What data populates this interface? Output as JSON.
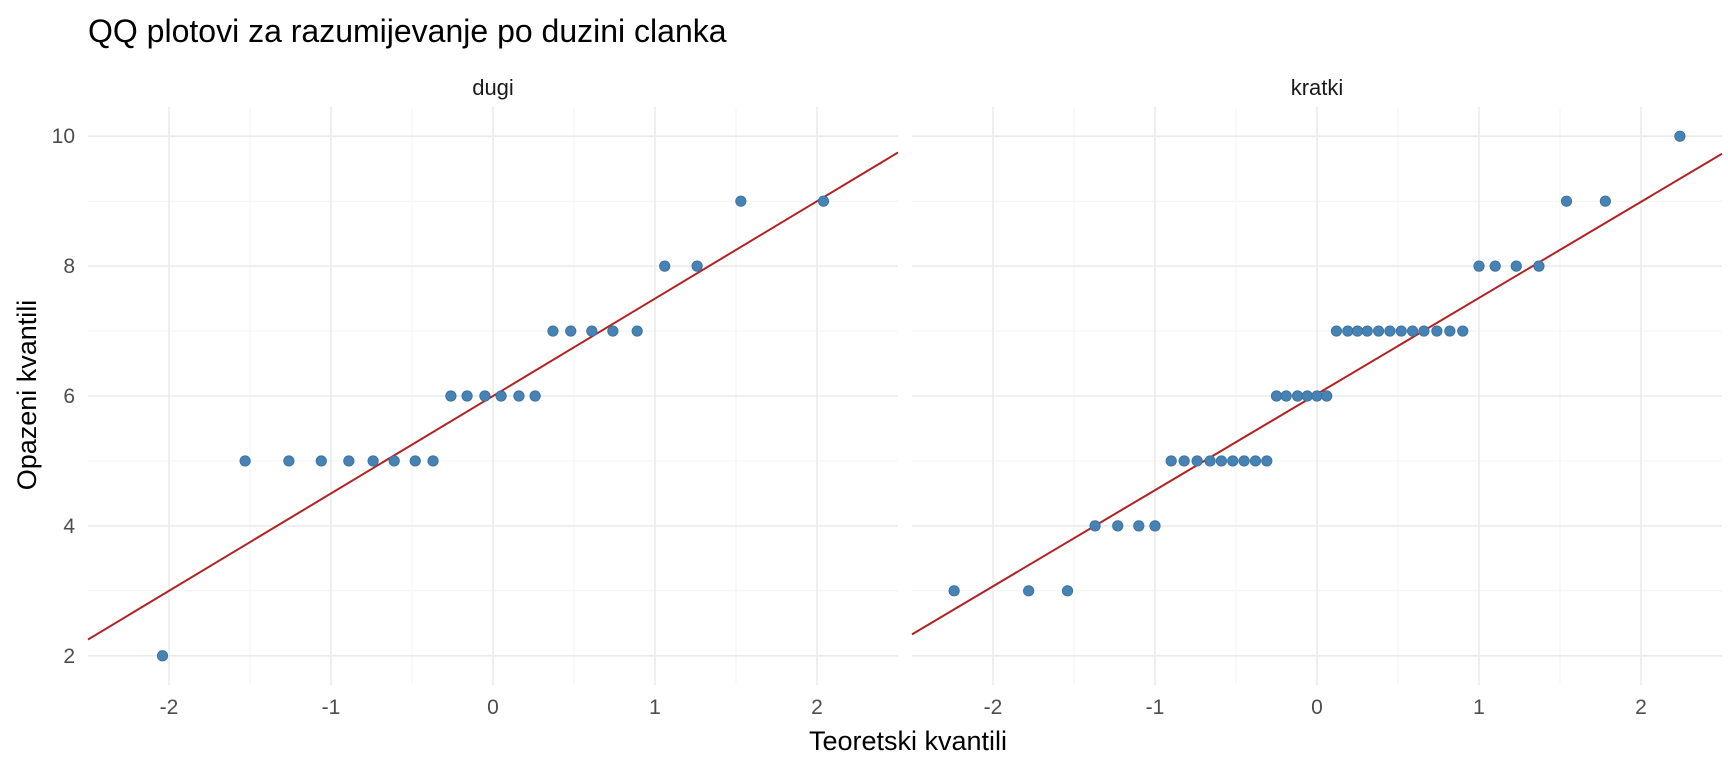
{
  "chart_data": {
    "type": "scatter",
    "title": "QQ plotovi za razumijevanje po duzini clanka",
    "xlabel": "Teoretski kvantili",
    "ylabel": "Opazeni kvantili",
    "xlim": [
      -2.5,
      2.5
    ],
    "ylim": [
      1.55,
      10.45
    ],
    "x_ticks": [
      -2,
      -1,
      0,
      1,
      2
    ],
    "y_ticks": [
      2,
      4,
      6,
      8,
      10
    ],
    "grid": true,
    "point_color": "#4682B4",
    "line_color": "#B22222",
    "panels": [
      {
        "strip": "dugi",
        "line": {
          "slope": 1.5,
          "intercept": 6.0
        },
        "points": {
          "x": [
            -2.04,
            -1.53,
            -1.26,
            -1.06,
            -0.89,
            -0.74,
            -0.61,
            -0.48,
            -0.37,
            -0.26,
            -0.16,
            -0.05,
            0.05,
            0.16,
            0.26,
            0.37,
            0.48,
            0.61,
            0.74,
            0.89,
            1.06,
            1.26,
            1.53,
            2.04
          ],
          "y": [
            2,
            5,
            5,
            5,
            5,
            5,
            5,
            5,
            5,
            6,
            6,
            6,
            6,
            6,
            6,
            7,
            7,
            7,
            7,
            7,
            8,
            8,
            9,
            9
          ]
        }
      },
      {
        "strip": "kratki",
        "line": {
          "slope": 1.48,
          "intercept": 6.03
        },
        "points": {
          "x": [
            -2.24,
            -1.78,
            -1.54,
            -1.37,
            -1.23,
            -1.1,
            -1.0,
            -0.9,
            -0.82,
            -0.74,
            -0.66,
            -0.59,
            -0.52,
            -0.45,
            -0.38,
            -0.31,
            -0.25,
            -0.19,
            -0.12,
            -0.06,
            0.0,
            0.06,
            0.12,
            0.19,
            0.25,
            0.31,
            0.38,
            0.45,
            0.52,
            0.59,
            0.66,
            0.74,
            0.82,
            0.9,
            1.0,
            1.1,
            1.23,
            1.37,
            1.54,
            1.78,
            2.24
          ],
          "y": [
            3,
            3,
            3,
            4,
            4,
            4,
            4,
            5,
            5,
            5,
            5,
            5,
            5,
            5,
            5,
            5,
            6,
            6,
            6,
            6,
            6,
            6,
            7,
            7,
            7,
            7,
            7,
            7,
            7,
            7,
            7,
            7,
            7,
            7,
            8,
            8,
            8,
            8,
            9,
            9,
            10
          ]
        }
      }
    ]
  }
}
